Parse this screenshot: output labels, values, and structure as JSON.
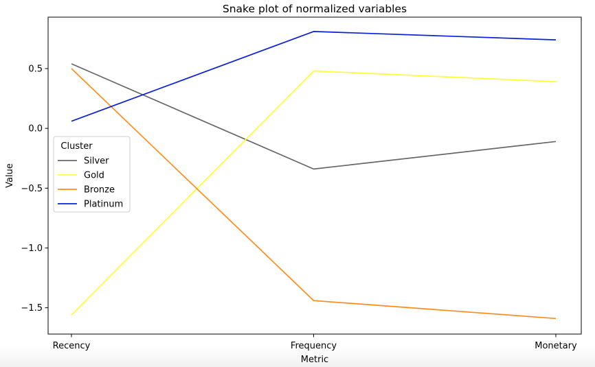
{
  "chart_data": {
    "type": "line",
    "title": "Snake plot of normalized variables",
    "xlabel": "Metric",
    "ylabel": "Value",
    "categories": [
      "Recency",
      "Frequency",
      "Monetary"
    ],
    "ylim": [
      -1.72,
      0.93
    ],
    "yticks": [
      0.5,
      0.0,
      -0.5,
      -1.0,
      -1.5
    ],
    "ytick_labels": [
      "0.5",
      "0.0",
      "−0.5",
      "−1.0",
      "−1.5"
    ],
    "grid": false,
    "legend": {
      "title": "Cluster",
      "placement": "center-left"
    },
    "series": [
      {
        "name": "Silver",
        "color": "#666666",
        "values": [
          0.54,
          -0.34,
          -0.11
        ]
      },
      {
        "name": "Gold",
        "color": "#ffff33",
        "values": [
          -1.56,
          0.48,
          0.39
        ]
      },
      {
        "name": "Bronze",
        "color": "#ff8c1a",
        "values": [
          0.5,
          -1.44,
          -1.59
        ]
      },
      {
        "name": "Platinum",
        "color": "#0a1fdc",
        "values": [
          0.06,
          0.81,
          0.74
        ]
      }
    ]
  }
}
